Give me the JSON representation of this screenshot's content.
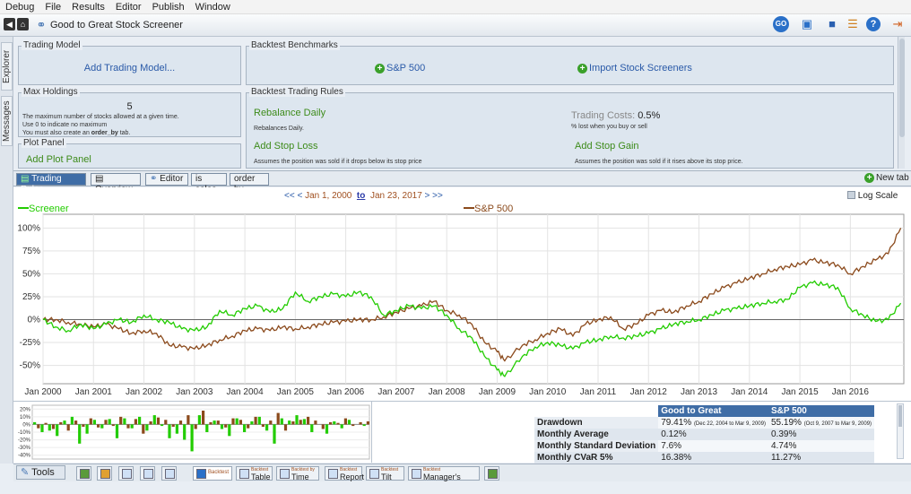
{
  "menu": [
    "Debug",
    "File",
    "Results",
    "Editor",
    "Publish",
    "Window"
  ],
  "app": {
    "title": "Good to Great Stock Screener"
  },
  "toolbar": {
    "go_label": "GO"
  },
  "side_tabs": {
    "explorer": "Explorer",
    "messages": "Messages"
  },
  "panels": {
    "trading_model": {
      "title": "Trading Model",
      "link": "Add Trading Model..."
    },
    "benchmarks": {
      "title": "Backtest Benchmarks",
      "sp500": "S&P 500",
      "import": "Import Stock Screeners"
    },
    "max_holdings": {
      "title": "Max Holdings",
      "value": "5",
      "desc1": "The maximum number of stocks allowed at a given time.",
      "desc2": "Use 0 to indicate no maximum",
      "desc3_prefix": "You must also create an ",
      "desc3_code": "order_by",
      "desc3_suffix": " tab."
    },
    "trading_rules": {
      "title": "Backtest Trading Rules",
      "rebalance": "Rebalance Daily",
      "rebalance_desc": "Rebalances Daily.",
      "trading_costs_label": "Trading Costs:",
      "trading_costs_value": "0.5%",
      "trading_costs_desc": "% lost when you buy or sell",
      "stop_loss": "Add Stop Loss",
      "stop_loss_desc": "Assumes the position was sold if it drops below its stop price",
      "stop_gain": "Add Stop Gain",
      "stop_gain_desc": "Assumes the position was sold if it rises above its stop price."
    },
    "plot_panel": {
      "title": "Plot Panel",
      "link": "Add Plot Panel"
    }
  },
  "tabs": [
    "Trading Rules",
    "Overview",
    "Editor",
    "is sales",
    "order by"
  ],
  "new_tab": "New tab",
  "date_range": {
    "prev": "<< <",
    "from": "Jan 1, 2000",
    "to_label": "to",
    "to": "Jan 23, 2017",
    "next": "> >>"
  },
  "log_scale": "Log Scale",
  "colors": {
    "screener": "#22cc00",
    "sp500": "#8b4a1c",
    "accent": "#3f6da6"
  },
  "chart_data": {
    "type": "line",
    "x_labels": [
      "Jan 2000",
      "Jan 2001",
      "Jan 2002",
      "Jan 2003",
      "Jan 2004",
      "Jan 2005",
      "Jan 2006",
      "Jan 2007",
      "Jan 2008",
      "Jan 2009",
      "Jan 2010",
      "Jan 2011",
      "Jan 2012",
      "Jan 2013",
      "Jan 2014",
      "Jan 2015",
      "Jan 2016"
    ],
    "y_ticks": [
      "100%",
      "75%",
      "50%",
      "25%",
      "0%",
      "-25%",
      "-50%"
    ],
    "ylim": [
      -70,
      115
    ],
    "xlim": [
      2000.0,
      2017.06
    ],
    "series": [
      {
        "name": "Screener",
        "color": "#22cc00",
        "x": [
          2000.0,
          2000.25,
          2000.5,
          2000.75,
          2001.0,
          2001.25,
          2001.5,
          2001.75,
          2002.0,
          2002.25,
          2002.5,
          2002.75,
          2003.0,
          2003.25,
          2003.5,
          2003.75,
          2004.0,
          2004.25,
          2004.5,
          2004.75,
          2005.0,
          2005.25,
          2005.5,
          2005.75,
          2006.0,
          2006.25,
          2006.5,
          2006.75,
          2007.0,
          2007.25,
          2007.5,
          2007.75,
          2008.0,
          2008.25,
          2008.5,
          2008.75,
          2009.0,
          2009.15,
          2009.5,
          2009.75,
          2010.0,
          2010.25,
          2010.5,
          2010.75,
          2011.0,
          2011.25,
          2011.5,
          2011.75,
          2012.0,
          2012.25,
          2012.5,
          2012.75,
          2013.0,
          2013.25,
          2013.5,
          2013.75,
          2014.0,
          2014.25,
          2014.5,
          2014.75,
          2015.0,
          2015.25,
          2015.5,
          2015.75,
          2016.0,
          2016.25,
          2016.5,
          2016.75,
          2017.0
        ],
        "y": [
          0,
          -8,
          -12,
          -5,
          -10,
          -5,
          0,
          -3,
          5,
          0,
          -3,
          -10,
          -12,
          -8,
          10,
          5,
          12,
          15,
          8,
          12,
          30,
          20,
          25,
          28,
          25,
          30,
          25,
          5,
          10,
          15,
          12,
          15,
          5,
          -10,
          -20,
          -40,
          -55,
          -62,
          -40,
          -30,
          -25,
          -28,
          -32,
          -25,
          -22,
          -18,
          -20,
          -18,
          -15,
          -10,
          -5,
          -2,
          0,
          5,
          10,
          12,
          15,
          18,
          20,
          22,
          35,
          40,
          38,
          35,
          12,
          5,
          -2,
          0,
          18
        ]
      },
      {
        "name": "S&P 500",
        "color": "#8b4a1c",
        "x": [
          2000.0,
          2000.25,
          2000.5,
          2000.75,
          2001.0,
          2001.25,
          2001.5,
          2001.75,
          2002.0,
          2002.25,
          2002.5,
          2002.75,
          2003.0,
          2003.25,
          2003.5,
          2003.75,
          2004.0,
          2004.25,
          2004.5,
          2004.75,
          2005.0,
          2005.25,
          2005.5,
          2005.75,
          2006.0,
          2006.25,
          2006.5,
          2006.75,
          2007.0,
          2007.25,
          2007.5,
          2007.75,
          2008.0,
          2008.25,
          2008.5,
          2008.75,
          2009.0,
          2009.15,
          2009.5,
          2009.75,
          2010.0,
          2010.25,
          2010.5,
          2010.75,
          2011.0,
          2011.25,
          2011.5,
          2011.75,
          2012.0,
          2012.25,
          2012.5,
          2012.75,
          2013.0,
          2013.25,
          2013.5,
          2013.75,
          2014.0,
          2014.25,
          2014.5,
          2014.75,
          2015.0,
          2015.25,
          2015.5,
          2015.75,
          2016.0,
          2016.25,
          2016.5,
          2016.75,
          2017.0
        ],
        "y": [
          0,
          0,
          -3,
          -5,
          -8,
          -5,
          -10,
          -15,
          -12,
          -15,
          -28,
          -30,
          -32,
          -28,
          -22,
          -18,
          -12,
          -10,
          -12,
          -8,
          -10,
          -8,
          -5,
          -3,
          -2,
          0,
          0,
          3,
          8,
          12,
          15,
          20,
          10,
          5,
          -5,
          -25,
          -35,
          -45,
          -28,
          -22,
          -15,
          -10,
          -18,
          -5,
          0,
          3,
          -10,
          -5,
          5,
          10,
          8,
          15,
          20,
          28,
          35,
          40,
          45,
          50,
          55,
          58,
          60,
          65,
          62,
          60,
          50,
          58,
          65,
          72,
          100
        ]
      }
    ]
  },
  "mini_chart": {
    "y_ticks": [
      "20%",
      "10%",
      "0%",
      "-10%",
      "-20%",
      "-30%",
      "-40%"
    ],
    "ylim": [
      -45,
      25
    ],
    "series": [
      {
        "name": "Good to Great",
        "color": "#22cc00",
        "values": [
          3,
          -10,
          -8,
          -15,
          5,
          10,
          -25,
          -12,
          6,
          -5,
          7,
          -18,
          8,
          -5,
          10,
          -8,
          12,
          -2,
          -18,
          -12,
          -20,
          -35,
          12,
          -10,
          5,
          -6,
          -15,
          8,
          -10,
          4,
          10,
          -8,
          -25,
          8,
          5,
          12,
          7,
          -10,
          0,
          -12,
          4,
          -5,
          6,
          0,
          -2
        ]
      },
      {
        "name": "S&P 500",
        "color": "#8b4a1c",
        "values": [
          -5,
          2,
          -6,
          3,
          -8,
          5,
          -3,
          8,
          -4,
          6,
          -2,
          10,
          -5,
          7,
          -12,
          4,
          9,
          6,
          -3,
          5,
          12,
          -6,
          18,
          3,
          5,
          -4,
          8,
          6,
          -5,
          10,
          -3,
          5,
          15,
          -8,
          4,
          6,
          10,
          5,
          -6,
          3,
          2,
          8,
          -2,
          3,
          4
        ]
      }
    ]
  },
  "stats": {
    "headers": [
      "Good to Great",
      "S&P 500"
    ],
    "rows": [
      {
        "label": "Drawdown",
        "a": "79.41%",
        "a_note": "(Dec 22, 2004 to Mar 9, 2009)",
        "b": "55.19%",
        "b_note": "(Oct 9, 2007 to Mar 9, 2009)"
      },
      {
        "label": "Monthly Average",
        "a": "0.12%",
        "b": "0.39%"
      },
      {
        "label": "Monthly Standard Deviation",
        "a": "7.6%",
        "b": "4.74%"
      },
      {
        "label": "Monthly CVaR 5%",
        "a": "16.38%",
        "b": "11.27%"
      }
    ]
  },
  "bottom_tabs": {
    "tools": "Tools",
    "backtest": "Backtest",
    "items": [
      {
        "top": "Backtest",
        "label": "Table"
      },
      {
        "top": "Backtest by",
        "label": "Time"
      },
      {
        "top": "Backtest",
        "label": "Report"
      },
      {
        "top": "Backtest",
        "label": "Tilt"
      },
      {
        "top": "Backtest",
        "label": "Manager's Report"
      }
    ]
  }
}
